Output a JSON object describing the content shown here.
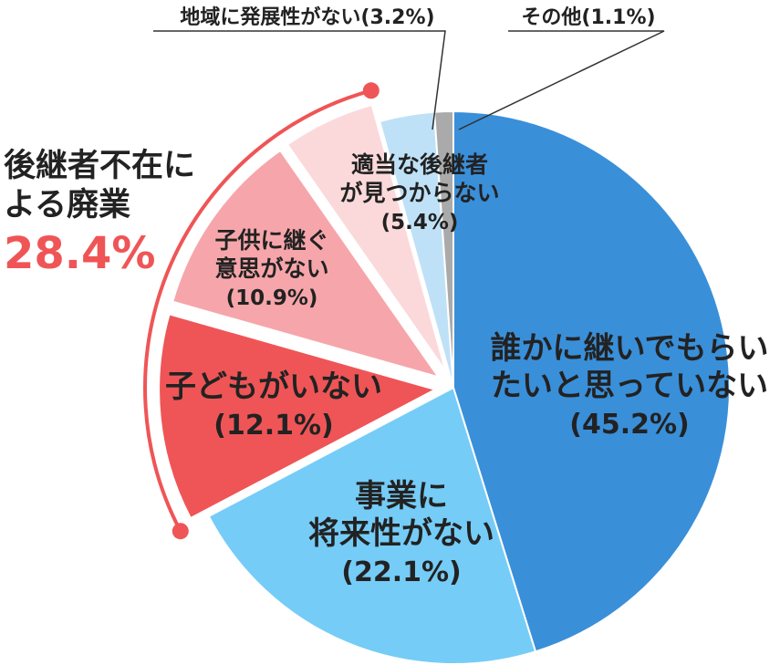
{
  "chart_data": {
    "type": "pie",
    "title": "",
    "slices": [
      {
        "label_lines": [
          "誰かに継いでもらい",
          "たいと思っていない"
        ],
        "pct_text": "(45.2%)",
        "value": 45.2,
        "color": "#3a8fd9",
        "exploded": false
      },
      {
        "label_lines": [
          "事業に",
          "将来性がない"
        ],
        "pct_text": "(22.1%)",
        "value": 22.1,
        "color": "#75ccf7",
        "exploded": false
      },
      {
        "label_lines": [
          "子どもがいない"
        ],
        "pct_text": "(12.1%)",
        "value": 12.1,
        "color": "#ef5556",
        "exploded": true
      },
      {
        "label_lines": [
          "子供に継ぐ",
          "意思がない"
        ],
        "pct_text": "(10.9%)",
        "value": 10.9,
        "color": "#f6a6aa",
        "exploded": true
      },
      {
        "label_lines": [
          "適当な後継者",
          "が見つからない"
        ],
        "pct_text": "(5.4%)",
        "value": 5.4,
        "color": "#fbd9db",
        "exploded": true
      },
      {
        "label_lines": [
          "地域に発展性がない"
        ],
        "pct_text": "(3.2%)",
        "value": 3.2,
        "color": "#bfe1f7",
        "exploded": false
      },
      {
        "label_lines": [
          "その他"
        ],
        "pct_text": "(1.1%)",
        "value": 1.1,
        "color": "#aaaaaa",
        "exploded": false
      }
    ],
    "group": {
      "label_lines": [
        "後継者不在に",
        "よる廃業"
      ],
      "pct_text": "28.4%",
      "color": "#ef5556"
    }
  }
}
